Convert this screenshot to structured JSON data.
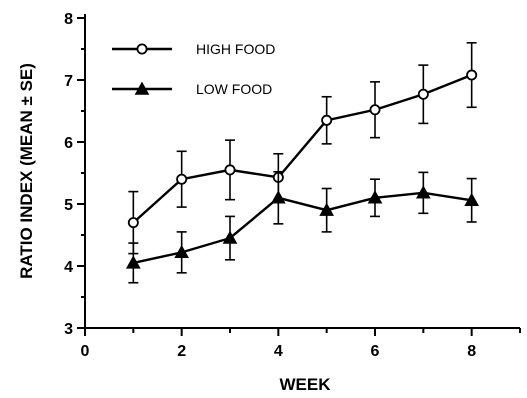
{
  "chart_data": {
    "type": "line",
    "xlabel": "WEEK",
    "ylabel": "RATIO INDEX (MEAN ± SE)",
    "xlim": [
      0,
      9
    ],
    "ylim": [
      3,
      8
    ],
    "xticks": [
      0,
      2,
      4,
      6,
      8
    ],
    "yticks": [
      3,
      4,
      5,
      6,
      7,
      8
    ],
    "x": [
      1,
      2,
      3,
      4,
      5,
      6,
      7,
      8
    ],
    "legend_position": "top-left",
    "grid": false,
    "series": [
      {
        "name": "HIGH FOOD",
        "marker": "open-circle",
        "values": [
          4.7,
          5.4,
          5.55,
          5.43,
          6.35,
          6.52,
          6.77,
          7.08
        ],
        "se": [
          0.5,
          0.45,
          0.48,
          0.38,
          0.38,
          0.45,
          0.47,
          0.52
        ]
      },
      {
        "name": "LOW FOOD",
        "marker": "filled-triangle",
        "values": [
          4.05,
          4.22,
          4.45,
          5.1,
          4.9,
          5.1,
          5.18,
          5.06
        ],
        "se": [
          0.32,
          0.33,
          0.35,
          0.42,
          0.35,
          0.3,
          0.33,
          0.35
        ]
      }
    ]
  }
}
